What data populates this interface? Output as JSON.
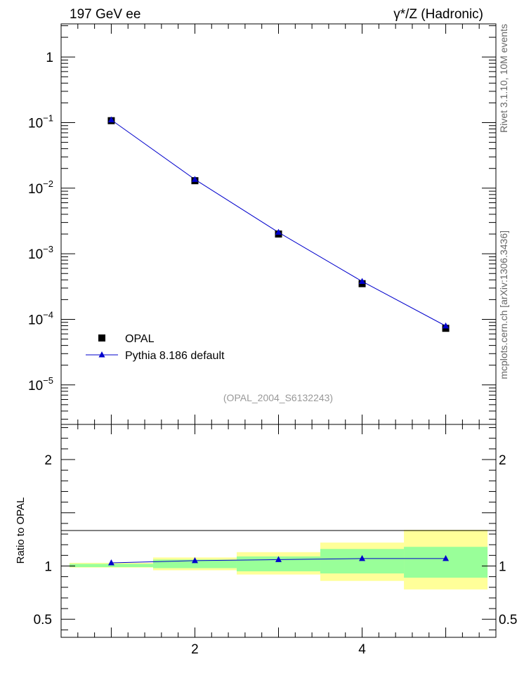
{
  "header": {
    "left_title": "197 GeV ee",
    "right_title": "γ*/Z (Hadronic)",
    "side_label_top": "Rivet 3.1.10, 10M events",
    "side_label_bottom": "mcplots.cern.ch [arXiv:1306.3436]",
    "analysis_id": "(OPAL_2004_S6132243)"
  },
  "colors": {
    "data_marker": "#000000",
    "mc_line": "#0000cc",
    "mc_marker": "#0000cc",
    "band_inner": "#99ff99",
    "band_outer": "#ffff99"
  },
  "chart_data": [
    {
      "type": "scatter",
      "panel": "main",
      "xlim": [
        0.4,
        5.6
      ],
      "ylim": [
        2.5e-06,
        3.2
      ],
      "log_y": true,
      "y_tick_labels": [
        "1",
        "10^-1",
        "10^-2",
        "10^-3",
        "10^-4",
        "10^-5"
      ],
      "legend_position": "bottom-left",
      "series": [
        {
          "name": "OPAL",
          "marker": "square",
          "x": [
            1,
            2,
            3,
            4,
            5
          ],
          "y": [
            0.107,
            0.013,
            0.002,
            0.00035,
            7.3e-05
          ]
        },
        {
          "name": "Pythia 8.186 default",
          "marker": "triangle",
          "line": true,
          "x": [
            1,
            2,
            3,
            4,
            5
          ],
          "y": [
            0.11,
            0.0136,
            0.00212,
            0.000379,
            7.93e-05
          ]
        }
      ]
    },
    {
      "type": "line",
      "panel": "ratio",
      "ylabel": "Ratio to OPAL",
      "xlim": [
        0.4,
        5.6
      ],
      "ylim": [
        0.33,
        2.33
      ],
      "y_tick_labels": [
        "0.5",
        "1",
        "2"
      ],
      "x_tick_labels": [
        "2",
        "4"
      ],
      "bins": [
        [
          0.5,
          1.5
        ],
        [
          1.5,
          2.5
        ],
        [
          2.5,
          3.5
        ],
        [
          3.5,
          4.5
        ],
        [
          4.5,
          5.5
        ]
      ],
      "band_inner": [
        [
          0.99,
          1.02
        ],
        [
          0.98,
          1.06
        ],
        [
          0.95,
          1.09
        ],
        [
          0.93,
          1.16
        ],
        [
          0.89,
          1.18
        ]
      ],
      "band_outer": [
        [
          0.985,
          1.03
        ],
        [
          0.96,
          1.08
        ],
        [
          0.92,
          1.13
        ],
        [
          0.86,
          1.22
        ],
        [
          0.78,
          1.34
        ]
      ],
      "series": [
        {
          "name": "Pythia 8.186 default",
          "x": [
            1,
            2,
            3,
            4,
            5
          ],
          "y": [
            1.03,
            1.05,
            1.06,
            1.07,
            1.07
          ]
        }
      ]
    }
  ]
}
